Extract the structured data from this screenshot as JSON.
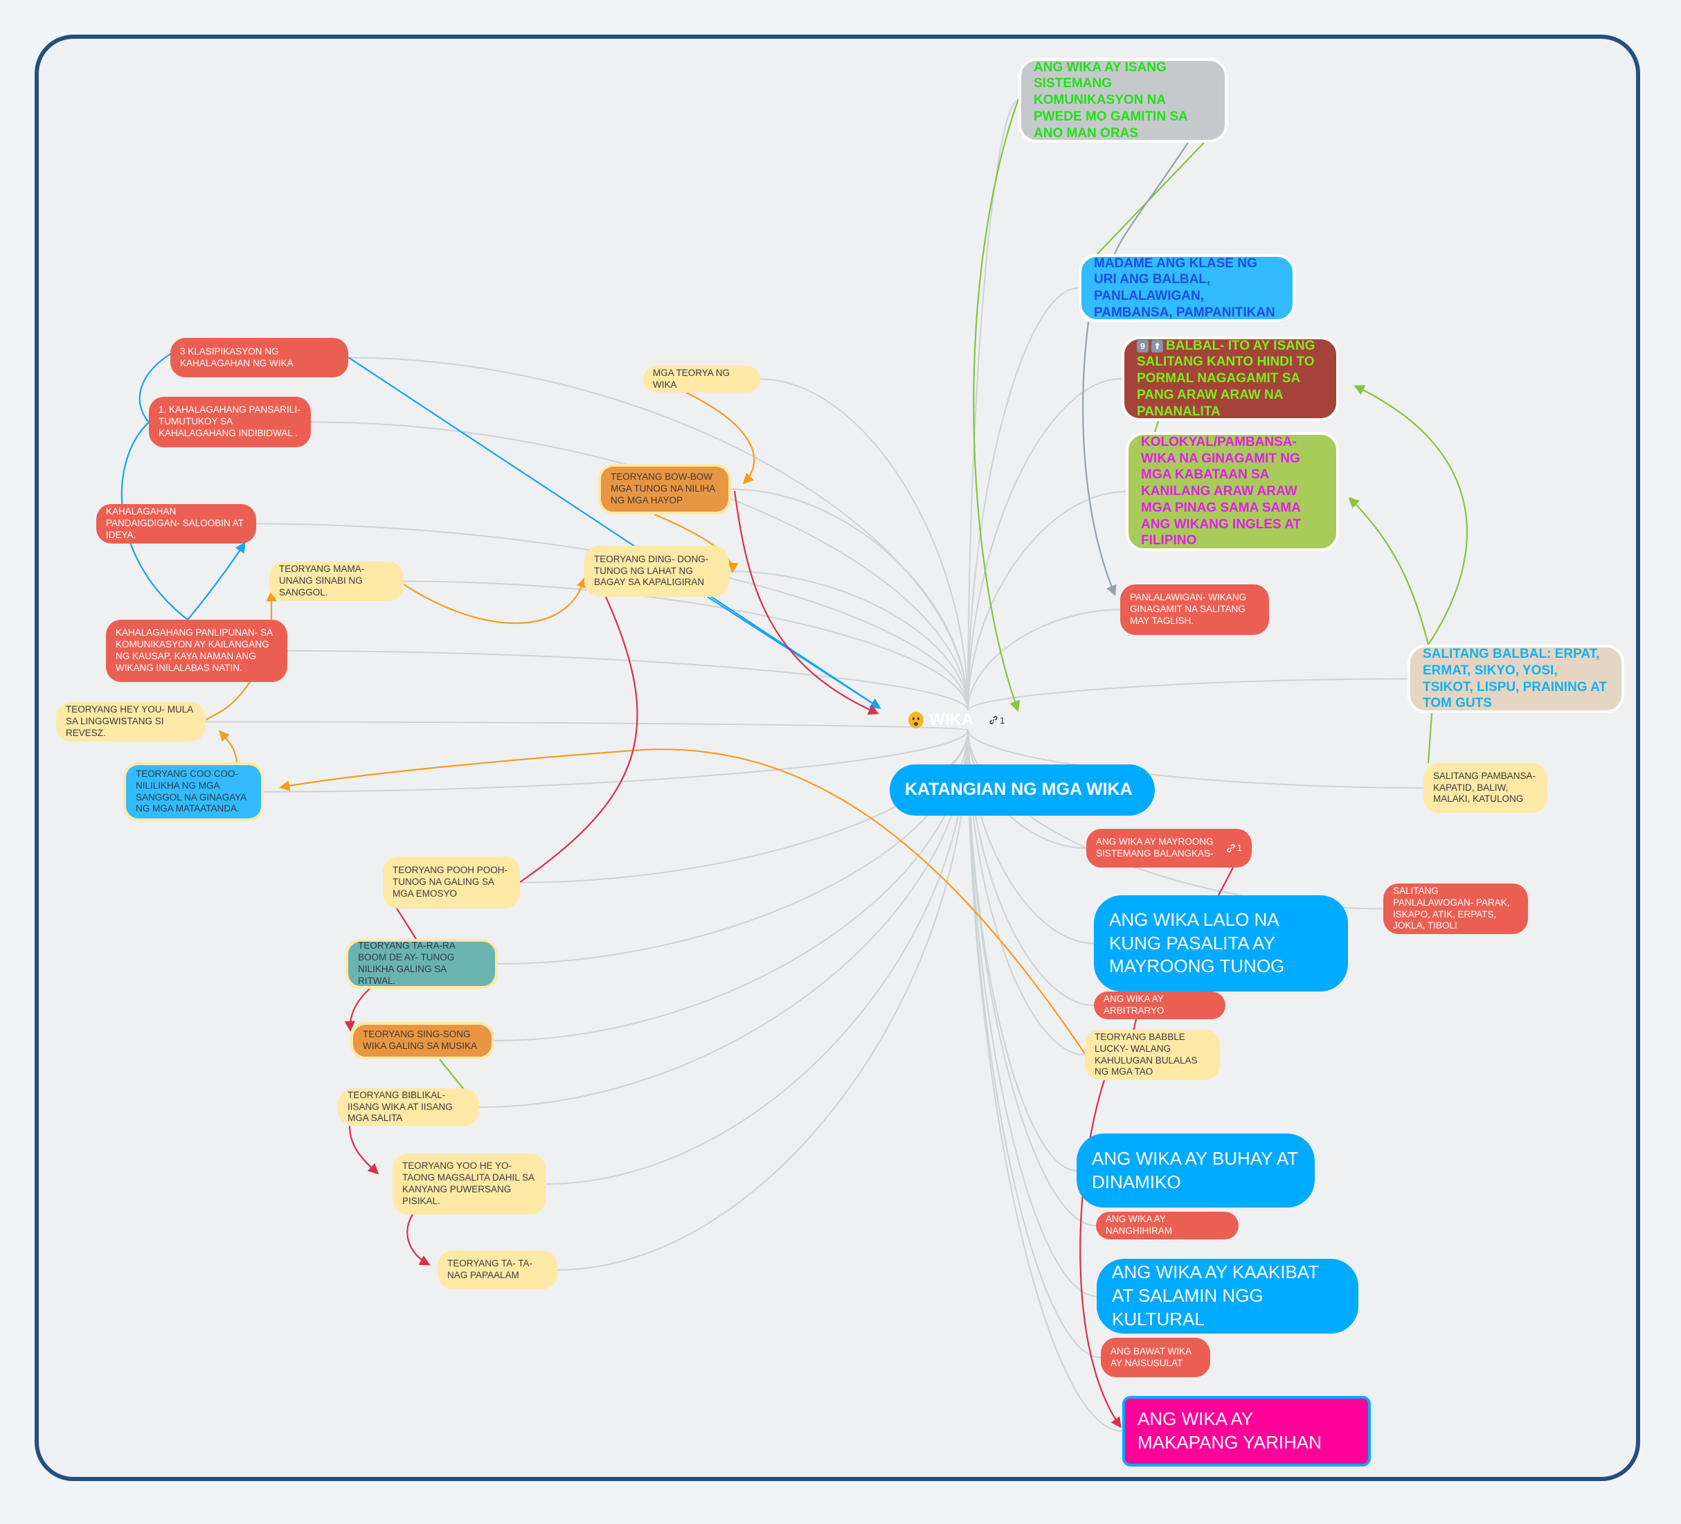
{
  "colors": {
    "frame": "#24507f",
    "red": "#eb5f52",
    "yellow": "#ffe9a6",
    "blue": "#00aaff",
    "light_blue": "#33bbff",
    "pink": "#ff0099",
    "connector": "#cdd3d7"
  },
  "hub": {
    "icon": "worried-face-emoji",
    "label": "WIKA",
    "link_count": "1"
  },
  "right": {
    "sistema": "ANG WIKA AY ISANG SISTEMANG KOMUNIKASYON NA PWEDE MO GAMITIN SA ANO MAN ORAS",
    "madame": "MADAME ANG KLASE NG URI ANG BALBAL, PANLALAWIGAN, PAMBANSA, PAMPANITIKAN",
    "balbal_icons": [
      "9",
      "⬆"
    ],
    "balbal": "BALBAL- ITO AY ISANG SALITANG KANTO HINDI TO PORMAL NAGAGAMIT SA PANG ARAW ARAW NA PANANALITA",
    "kolokyal": "KOLOKYAL/PAMBANSA- WIKA NA GINAGAMIT NG MGA KABATAAN SA KANILANG ARAW ARAW MGA PINAG SAMA SAMA ANG WIKANG INGLES AT FILIPINO",
    "panlalawigan": "PANLALAWIGAN- WIKANG GINAGAMIT NA SALITANG MAY TAGLISH.",
    "salitang_balbal": "SALITANG BALBAL: ERPAT, ERMAT, SIKYO, YOSI, TSIKOT, LISPU, PRAINING AT TOM GUTS",
    "salitang_pambansa": "SALITANG PAMBANSA- KAPATID, BALIW, MALAKI, KATULONG",
    "katangian": "KATANGIAN NG MGA WIKA",
    "balangkas": "ANG WIKA AY MAYROONG SISTEMANG BALANGKAS-",
    "balangkas_link_count": "1",
    "panlalawogan": "SALITANG PANLALAWOGAN- PARAK, ISKAPO, ATIK, ERPATS, JOKLA, TIBOLI",
    "tunog": "ANG WIKA LALO NA KUNG PASALITA AY MAYROONG TUNOG",
    "arbitraryo": "ANG WIKA AY ARBITRARYO",
    "babble": "TEORYANG BABBLE LUCKY- WALANG KAHULUGAN BULALAS NG MGA TAO",
    "buhay": "ANG WIKA AY BUHAY AT DINAMIKO",
    "nanghihiram": "ANG WIKA AY NANGHIHIRAM",
    "kaakibat": "ANG WIKA AY KAAKIBAT AT SALAMIN NGG KULTURAL",
    "naisusulat": "ANG BAWAT WIKA AY NAISUSULAT",
    "makapangyarihan": "ANG WIKA AY MAKAPANG YARIHAN"
  },
  "left": {
    "klasipikasyon": "3 KLASIPIKASYON NG KAHALAGAHAN NG WIKA",
    "pansarili": "1. KAHALAGAHANG PANSARILI- TUMUTUKOY SA KAHALAGAHANG INDIBIDWAL .",
    "pandaigdigan": "KAHALAGAHAN PANDAIGDIGAN- SALOOBIN AT IDEYA.",
    "mama": "TEORYANG MAMA- UNANG SINABI NG SANGGOL.",
    "panlipunan": "KAHALAGAHANG PANLIPUNAN- SA KOMUNIKASYON AY KAILANGANG NG KAUSAP, KAYA NAMAN ANG WIKANG INILALABAS NATIN.",
    "heyyou": "TEORYANG HEY YOU- MULA SA LINGGWISTANG SI REVESZ.",
    "coocoo": "TEORYANG COO COO- NILILIKHA NG MGA SANGGOL NA GINAGAYA NG MGA MATAATANDA.",
    "teorya": "MGA TEORYA NG WIKA",
    "bowbow": "TEORYANG BOW-BOW MGA TUNOG NA NILIHA NG MGA HAYOP",
    "dingdong": "TEORYANG DING- DONG- TUNOG NG LAHAT NG BAGAY SA KAPALIGIRAN",
    "pooh": "TEORYANG POOH POOH- TUNOG NA GALING SA MGA EMOSYO",
    "tarara": "TEORYANG TA-RA-RA BOOM DE AY- TUNOG NILIKHA GALING SA RITWAL.",
    "singsong": "TEORYANG SING-SONG WIKA GALING SA MUSIKA",
    "biblikal": "TEORYANG BIBLIKAL- IISANG WIKA AT IISANG MGA SALITA",
    "yoohe": "TEORYANG YOO HE YO- TAONG MAGSALITA DAHIL SA KANYANG PUWERSANG PISIKAL.",
    "tata": "TEORYANG TA- TA- NAG PAPAALAM"
  }
}
